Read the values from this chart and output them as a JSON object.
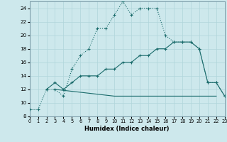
{
  "xlabel": "Humidex (Indice chaleur)",
  "bg_color": "#cde8ec",
  "grid_color": "#b0d5da",
  "line_color": "#1a6b6b",
  "xlim": [
    0,
    23
  ],
  "ylim": [
    8,
    25
  ],
  "xticks": [
    0,
    1,
    2,
    3,
    4,
    5,
    6,
    7,
    8,
    9,
    10,
    11,
    12,
    13,
    14,
    15,
    16,
    17,
    18,
    19,
    20,
    21,
    22,
    23
  ],
  "yticks": [
    8,
    10,
    12,
    14,
    16,
    18,
    20,
    22,
    24
  ],
  "curve1_x": [
    0,
    1,
    2,
    3,
    4,
    5,
    6,
    7,
    8,
    9,
    10,
    11,
    12,
    13,
    14,
    15,
    16,
    17,
    18,
    19,
    20,
    21,
    22,
    23
  ],
  "curve1_y": [
    9,
    9,
    12,
    12,
    11,
    15,
    17,
    18,
    21,
    21,
    23,
    25,
    23,
    24,
    24,
    24,
    20,
    19,
    19,
    19,
    18,
    13,
    13,
    11
  ],
  "curve2_x": [
    2,
    3,
    4,
    5,
    6,
    7,
    8,
    9,
    10,
    11,
    12,
    13,
    14,
    15,
    16,
    17,
    18,
    19,
    20,
    21,
    22,
    23
  ],
  "curve2_y": [
    12,
    13,
    12,
    13,
    14,
    14,
    14,
    15,
    15,
    16,
    16,
    17,
    17,
    18,
    18,
    19,
    19,
    19,
    18,
    13,
    13,
    11
  ],
  "curve3_x": [
    3,
    10,
    22
  ],
  "curve3_y": [
    12,
    11,
    11
  ]
}
